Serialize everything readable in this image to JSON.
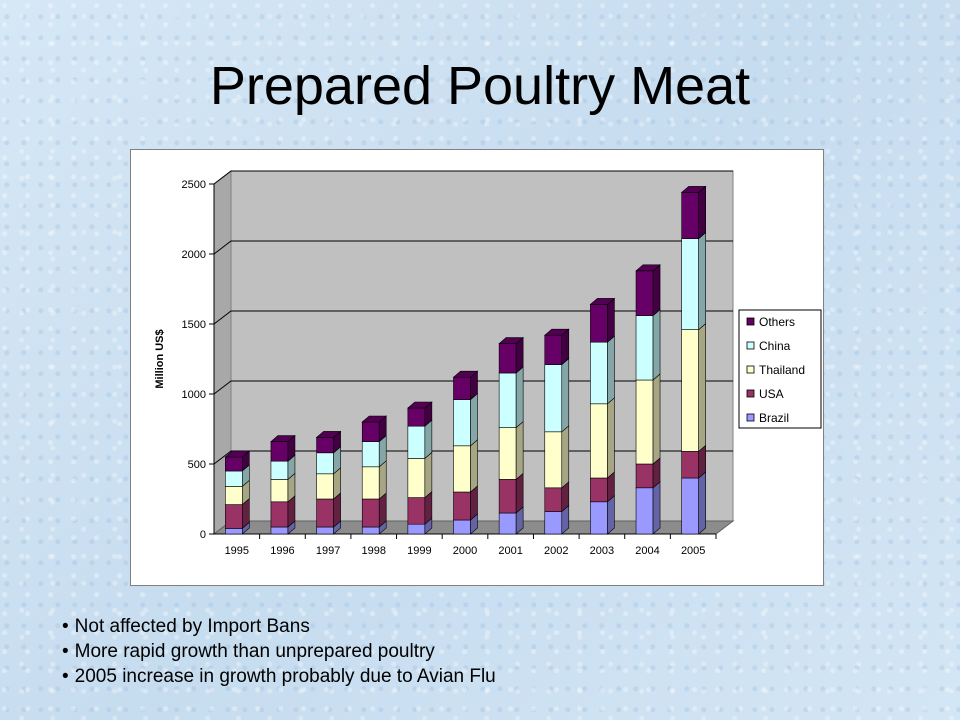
{
  "slide": {
    "title": "Prepared Poultry Meat"
  },
  "bullets": [
    "Not affected by Import Bans",
    "More rapid growth than unprepared poultry",
    "2005 increase in growth probably due to Avian Flu"
  ],
  "chart_data": {
    "type": "bar",
    "stacked": true,
    "three_d": true,
    "title": "",
    "xlabel": "",
    "ylabel": "Million US$",
    "ylim": [
      0,
      2500
    ],
    "yticks": [
      0,
      500,
      1000,
      1500,
      2000,
      2500
    ],
    "grid": true,
    "legend_position": "right",
    "categories": [
      "1995",
      "1996",
      "1997",
      "1998",
      "1999",
      "2000",
      "2001",
      "2002",
      "2003",
      "2004",
      "2005"
    ],
    "series": [
      {
        "name": "Brazil",
        "color": "#9999ff",
        "values": [
          40,
          50,
          50,
          50,
          70,
          100,
          150,
          160,
          230,
          330,
          400
        ]
      },
      {
        "name": "USA",
        "color": "#993366",
        "values": [
          170,
          180,
          200,
          200,
          190,
          200,
          240,
          170,
          170,
          170,
          190
        ]
      },
      {
        "name": "Thailand",
        "color": "#ffffcc",
        "values": [
          130,
          160,
          180,
          230,
          280,
          330,
          370,
          400,
          530,
          600,
          870
        ]
      },
      {
        "name": "China",
        "color": "#ccffff",
        "values": [
          110,
          130,
          150,
          180,
          230,
          330,
          390,
          480,
          440,
          460,
          650
        ]
      },
      {
        "name": "Others",
        "color": "#660066",
        "values": [
          100,
          140,
          110,
          140,
          130,
          160,
          210,
          210,
          270,
          320,
          330
        ]
      }
    ]
  }
}
